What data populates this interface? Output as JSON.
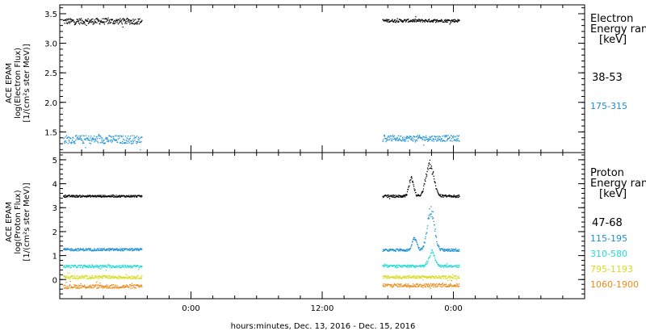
{
  "chart_data": [
    {
      "type": "scatter",
      "panel": "electron",
      "ylabel": [
        "ACE EPAM",
        "log(Electron Flux)",
        "[1/(cm²s ster MeV)]"
      ],
      "ylim": [
        1.15,
        3.65
      ],
      "yticks": [
        "1.5",
        "2.0",
        "2.5",
        "3.0",
        "3.5"
      ],
      "legend_title": [
        "Electron",
        "Energy ranges",
        "[keV]"
      ],
      "series": [
        {
          "name": "38-53",
          "color": "#000000",
          "segments": [
            {
              "x": [
                0.3,
                7.5
              ],
              "level": 3.38,
              "spread": 0.05
            },
            {
              "x": [
                29.5,
                36.5
              ],
              "level": 3.39,
              "spread": 0.025
            }
          ]
        },
        {
          "name": "175-315",
          "color": "#1a8fd6",
          "segments": [
            {
              "x": [
                0.3,
                7.5
              ],
              "level": 1.38,
              "spread": 0.07
            },
            {
              "x": [
                29.5,
                36.5
              ],
              "level": 1.4,
              "spread": 0.05
            }
          ]
        }
      ]
    },
    {
      "type": "scatter",
      "panel": "proton",
      "ylabel": [
        "ACE EPAM",
        "log(Proton Flux)",
        "[1/(cm²s ster MeV)]"
      ],
      "ylim": [
        -0.8,
        5.3
      ],
      "yticks": [
        "0",
        "1",
        "2",
        "3",
        "4",
        "5"
      ],
      "legend_title": [
        "Proton",
        "Energy ranges",
        "[keV]"
      ],
      "series": [
        {
          "name": "47-68",
          "color": "#000000",
          "segments": [
            {
              "x": [
                0.3,
                7.5
              ],
              "level": 3.5,
              "spread": 0.04
            },
            {
              "x": [
                29.5,
                36.5
              ],
              "level": 3.5,
              "spread": 0.05,
              "peaks": [
                {
                  "x": 33.8,
                  "height": 1.3,
                  "width": 0.5
                },
                {
                  "x": 32.1,
                  "height": 0.7,
                  "width": 0.3
                }
              ]
            }
          ]
        },
        {
          "name": "115-195",
          "color": "#1a8fd6",
          "segments": [
            {
              "x": [
                0.3,
                7.5
              ],
              "level": 1.27,
              "spread": 0.05
            },
            {
              "x": [
                29.5,
                36.5
              ],
              "level": 1.25,
              "spread": 0.05,
              "peaks": [
                {
                  "x": 33.9,
                  "height": 1.7,
                  "width": 0.45
                },
                {
                  "x": 32.4,
                  "height": 0.5,
                  "width": 0.3
                }
              ]
            }
          ]
        },
        {
          "name": "310-580",
          "color": "#26d9d4",
          "segments": [
            {
              "x": [
                0.3,
                7.5
              ],
              "level": 0.57,
              "spread": 0.06
            },
            {
              "x": [
                29.5,
                36.5
              ],
              "level": 0.58,
              "spread": 0.05,
              "peaks": [
                {
                  "x": 34.0,
                  "height": 0.6,
                  "width": 0.35
                }
              ]
            }
          ]
        },
        {
          "name": "795-1193",
          "color": "#d6dc1c",
          "segments": [
            {
              "x": [
                0.3,
                7.5
              ],
              "level": 0.12,
              "spread": 0.07
            },
            {
              "x": [
                29.5,
                36.5
              ],
              "level": 0.12,
              "spread": 0.06
            }
          ]
        },
        {
          "name": "1060-1900",
          "color": "#ee8a18",
          "segments": [
            {
              "x": [
                0.3,
                7.5
              ],
              "level": -0.27,
              "spread": 0.08
            },
            {
              "x": [
                29.5,
                36.5
              ],
              "level": -0.22,
              "spread": 0.07
            }
          ]
        }
      ]
    }
  ],
  "x_axis": {
    "range_hours": [
      0,
      48
    ],
    "tick_labels": [
      "0:00",
      "12:00",
      "0:00"
    ],
    "label": "hours:minutes, Dec. 13, 2016 - Dec. 15, 2016"
  }
}
